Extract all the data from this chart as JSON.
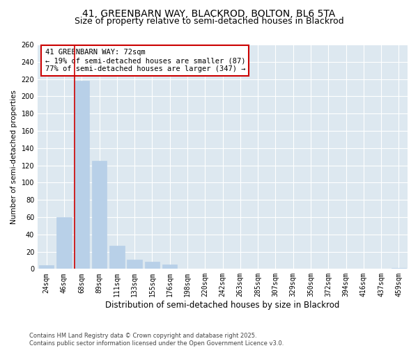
{
  "title_line1": "41, GREENBARN WAY, BLACKROD, BOLTON, BL6 5TA",
  "title_line2": "Size of property relative to semi-detached houses in Blackrod",
  "xlabel": "Distribution of semi-detached houses by size in Blackrod",
  "ylabel": "Number of semi-detached properties",
  "categories": [
    "24sqm",
    "46sqm",
    "68sqm",
    "89sqm",
    "111sqm",
    "133sqm",
    "155sqm",
    "176sqm",
    "198sqm",
    "220sqm",
    "242sqm",
    "263sqm",
    "285sqm",
    "307sqm",
    "329sqm",
    "350sqm",
    "372sqm",
    "394sqm",
    "416sqm",
    "437sqm",
    "459sqm"
  ],
  "values": [
    4,
    60,
    218,
    125,
    27,
    11,
    8,
    5,
    0,
    0,
    0,
    0,
    0,
    0,
    0,
    0,
    0,
    0,
    0,
    0,
    1
  ],
  "bar_color": "#b8d0e8",
  "bar_edge_color": "#b8d0e8",
  "highlight_line_color": "#cc0000",
  "annotation_text": "41 GREENBARN WAY: 72sqm\n← 19% of semi-detached houses are smaller (87)\n77% of semi-detached houses are larger (347) →",
  "annotation_box_color": "#ffffff",
  "annotation_box_edge": "#cc0000",
  "ylim": [
    0,
    260
  ],
  "yticks": [
    0,
    20,
    40,
    60,
    80,
    100,
    120,
    140,
    160,
    180,
    200,
    220,
    240,
    260
  ],
  "bg_color": "#ffffff",
  "plot_bg_color": "#dde8f0",
  "grid_color": "#ffffff",
  "footer": "Contains HM Land Registry data © Crown copyright and database right 2025.\nContains public sector information licensed under the Open Government Licence v3.0.",
  "title_fontsize": 10,
  "subtitle_fontsize": 9,
  "tick_fontsize": 7,
  "xlabel_fontsize": 8.5,
  "ylabel_fontsize": 7.5,
  "footer_fontsize": 6
}
